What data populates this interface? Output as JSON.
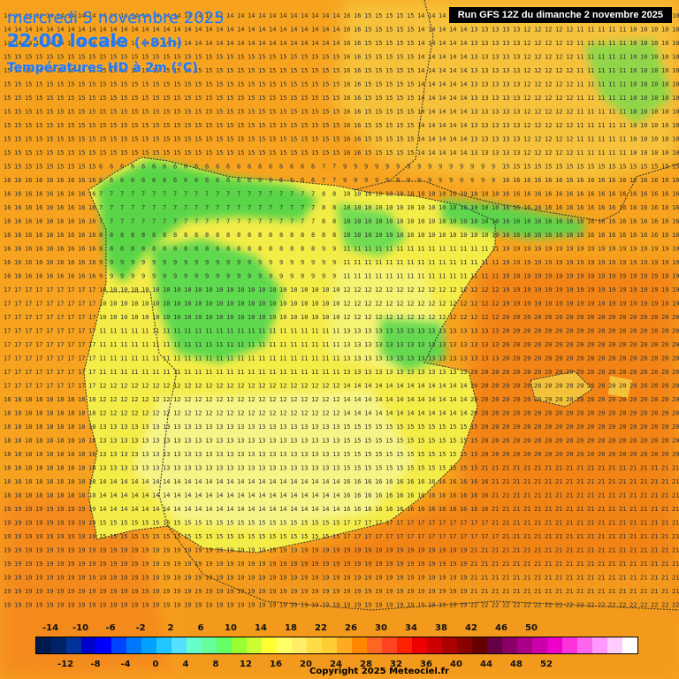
{
  "header": {
    "date_line": "mercredi 5 novembre 2025",
    "time_line": "22:00 locale",
    "offset": "(+81h)",
    "parameter": "Températures HD à 2m (°C)",
    "run": "Run GFS 12Z du dimanche 2 novembre 2025"
  },
  "legend": {
    "colors": [
      "#001a4d",
      "#002266",
      "#003399",
      "#0000cc",
      "#0000ff",
      "#0044ff",
      "#0077ff",
      "#00a2ff",
      "#22c5ff",
      "#55e0ff",
      "#66ffcc",
      "#66ff99",
      "#66ff66",
      "#99ff33",
      "#ccff33",
      "#ffff33",
      "#ffff66",
      "#ffee66",
      "#ffdd44",
      "#ffcc33",
      "#ffaa22",
      "#ff8800",
      "#ff6622",
      "#ff4422",
      "#ff2200",
      "#ee0000",
      "#cc0000",
      "#aa0000",
      "#880000",
      "#660000",
      "#660044",
      "#880066",
      "#aa0088",
      "#cc00aa",
      "#ee00cc",
      "#ff33dd",
      "#ff66ee",
      "#ff99ff",
      "#ffccff",
      "#ffffff"
    ],
    "labels_top": [
      "-14",
      "-10",
      "-6",
      "-2",
      "2",
      "6",
      "10",
      "14",
      "18",
      "22",
      "26",
      "30",
      "34",
      "38",
      "42",
      "46",
      "50"
    ],
    "labels_bottom": [
      "-12",
      "-8",
      "-4",
      "0",
      "4",
      "8",
      "12",
      "16",
      "20",
      "24",
      "28",
      "32",
      "36",
      "40",
      "44",
      "48",
      "52"
    ]
  },
  "map_colors": {
    "sea_warm": "#f58c1c",
    "sea_mid": "#f8a41f",
    "land_yellow": "#f6ef4a",
    "land_pale": "#f7f48a",
    "cool_green": "#5bd84d",
    "border": "#2b2b2b"
  },
  "copyright": "Copyright 2025 Meteociel.fr"
}
